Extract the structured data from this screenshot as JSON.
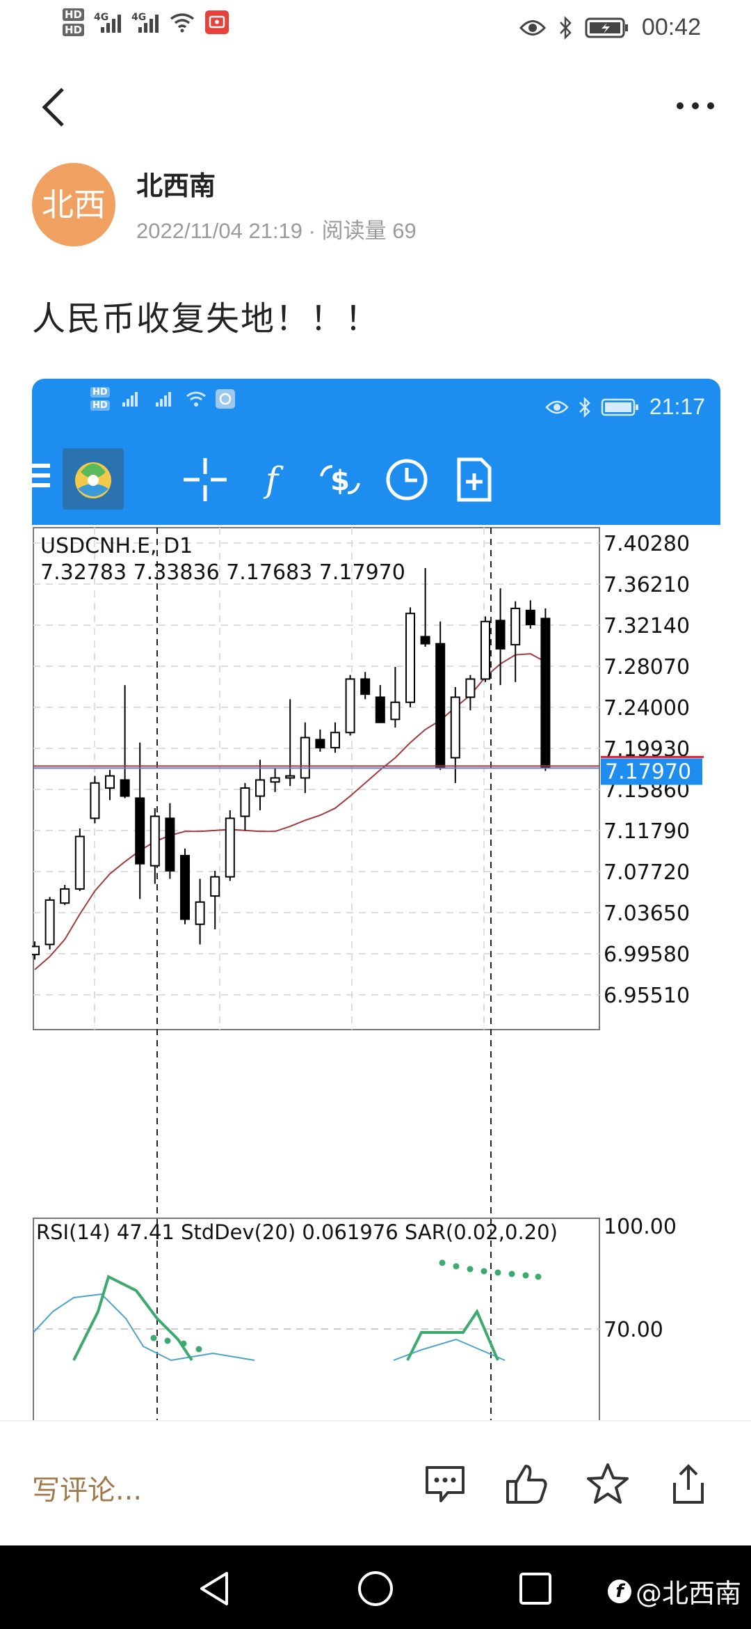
{
  "status_bar": {
    "hd1": "HD",
    "hd2": "HD",
    "net1": "4G",
    "net2": "4G",
    "time": "00:42"
  },
  "post": {
    "avatar_text": "北西",
    "author": "北西南",
    "datetime": "2022/11/04 21:19",
    "separator": "·",
    "views_label": "阅读量",
    "views": "69",
    "text": "人民币收复失地！！！"
  },
  "screenshot": {
    "status_time": "21:17",
    "symbol_line": "USDCNH.E, D1",
    "ohlc_line": "7.32783 7.33836 7.17683 7.17970",
    "indicator_line": "RSI(14) 47.41 StdDev(20) 0.061976 SAR(0.02,0.20)",
    "colors": {
      "toolbar": "#1e8df0",
      "bull": "#ffffff",
      "bear": "#000000",
      "ma": "#a23b3b",
      "rsi": "#3caa6e",
      "stddev": "#4aa3c8",
      "price_tag": "#1e8df0"
    }
  },
  "chart_data": {
    "type": "candlestick",
    "title": "USDCNH.E, D1",
    "y_ticks": [
      "7.40280",
      "7.36210",
      "7.32140",
      "7.28070",
      "7.24000",
      "7.19930",
      "7.15860",
      "7.11790",
      "7.07720",
      "7.03650",
      "6.99580",
      "6.95510"
    ],
    "current_price": "7.17970",
    "ylim": [
      6.93,
      7.42
    ],
    "candles": [
      {
        "o": 6.995,
        "h": 7.008,
        "l": 6.99,
        "c": 7.003
      },
      {
        "o": 7.005,
        "h": 7.052,
        "l": 7.0,
        "c": 7.049
      },
      {
        "o": 7.046,
        "h": 7.064,
        "l": 7.044,
        "c": 7.06
      },
      {
        "o": 7.06,
        "h": 7.12,
        "l": 7.058,
        "c": 7.112
      },
      {
        "o": 7.13,
        "h": 7.172,
        "l": 7.125,
        "c": 7.165
      },
      {
        "o": 7.16,
        "h": 7.178,
        "l": 7.148,
        "c": 7.172
      },
      {
        "o": 7.168,
        "h": 7.262,
        "l": 7.15,
        "c": 7.152
      },
      {
        "o": 7.15,
        "h": 7.205,
        "l": 7.05,
        "c": 7.085
      },
      {
        "o": 7.083,
        "h": 7.14,
        "l": 7.065,
        "c": 7.132
      },
      {
        "o": 7.13,
        "h": 7.145,
        "l": 7.07,
        "c": 7.078
      },
      {
        "o": 7.093,
        "h": 7.1,
        "l": 7.025,
        "c": 7.03
      },
      {
        "o": 7.025,
        "h": 7.07,
        "l": 7.005,
        "c": 7.047
      },
      {
        "o": 7.053,
        "h": 7.078,
        "l": 7.02,
        "c": 7.072
      },
      {
        "o": 7.072,
        "h": 7.138,
        "l": 7.068,
        "c": 7.13
      },
      {
        "o": 7.132,
        "h": 7.165,
        "l": 7.118,
        "c": 7.16
      },
      {
        "o": 7.152,
        "h": 7.188,
        "l": 7.138,
        "c": 7.168
      },
      {
        "o": 7.166,
        "h": 7.18,
        "l": 7.156,
        "c": 7.17
      },
      {
        "o": 7.17,
        "h": 7.248,
        "l": 7.162,
        "c": 7.172
      },
      {
        "o": 7.17,
        "h": 7.225,
        "l": 7.155,
        "c": 7.21
      },
      {
        "o": 7.208,
        "h": 7.218,
        "l": 7.196,
        "c": 7.2
      },
      {
        "o": 7.2,
        "h": 7.225,
        "l": 7.195,
        "c": 7.215
      },
      {
        "o": 7.215,
        "h": 7.272,
        "l": 7.212,
        "c": 7.268
      },
      {
        "o": 7.268,
        "h": 7.275,
        "l": 7.248,
        "c": 7.253
      },
      {
        "o": 7.25,
        "h": 7.262,
        "l": 7.225,
        "c": 7.225
      },
      {
        "o": 7.228,
        "h": 7.28,
        "l": 7.22,
        "c": 7.245
      },
      {
        "o": 7.245,
        "h": 7.339,
        "l": 7.24,
        "c": 7.333
      },
      {
        "o": 7.31,
        "h": 7.378,
        "l": 7.3,
        "c": 7.303
      },
      {
        "o": 7.303,
        "h": 7.325,
        "l": 7.178,
        "c": 7.18
      },
      {
        "o": 7.19,
        "h": 7.26,
        "l": 7.165,
        "c": 7.25
      },
      {
        "o": 7.25,
        "h": 7.272,
        "l": 7.237,
        "c": 7.268
      },
      {
        "o": 7.268,
        "h": 7.33,
        "l": 7.265,
        "c": 7.325
      },
      {
        "o": 7.326,
        "h": 7.358,
        "l": 7.262,
        "c": 7.298
      },
      {
        "o": 7.302,
        "h": 7.345,
        "l": 7.265,
        "c": 7.338
      },
      {
        "o": 7.336,
        "h": 7.346,
        "l": 7.318,
        "c": 7.322
      },
      {
        "o": 7.328,
        "h": 7.338,
        "l": 7.177,
        "c": 7.18
      }
    ],
    "ma_line": [
      6.98,
      6.993,
      7.01,
      7.035,
      7.058,
      7.075,
      7.087,
      7.098,
      7.107,
      7.113,
      7.117,
      7.117,
      7.118,
      7.119,
      7.118,
      7.117,
      7.117,
      7.122,
      7.128,
      7.133,
      7.14,
      7.152,
      7.165,
      7.178,
      7.19,
      7.205,
      7.218,
      7.227,
      7.24,
      7.252,
      7.27,
      7.283,
      7.292,
      7.293,
      7.285
    ],
    "subchart": {
      "y_ticks": [
        "100.00",
        "70.00"
      ]
    }
  },
  "bottom_bar": {
    "comment_placeholder": "写评论..."
  },
  "watermark": "@北西南"
}
